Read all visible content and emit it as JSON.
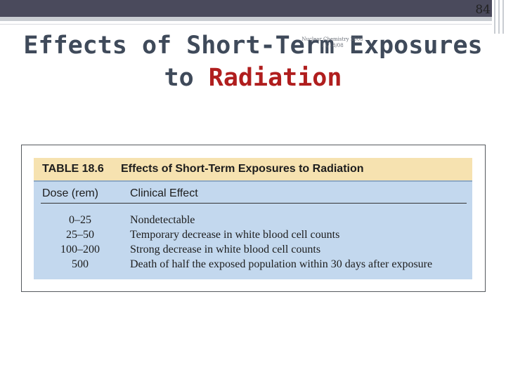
{
  "slide": {
    "page_number": "84",
    "title_line1": "Effects of Short-Term Exposures",
    "title_line2_prefix": "to",
    "title_line2_accent": "Radiation",
    "watermark_line1": "Nuclear Chemistry 2008",
    "watermark_line2": "11/18/08"
  },
  "table": {
    "number": "TABLE 18.6",
    "caption": "Effects of Short-Term Exposures to Radiation",
    "headers": {
      "dose": "Dose (rem)",
      "effect": "Clinical Effect"
    },
    "rows": [
      {
        "dose": "0–25",
        "effect": "Nondetectable"
      },
      {
        "dose": "25–50",
        "effect": "Temporary decrease in white blood cell counts"
      },
      {
        "dose": "100–200",
        "effect": "Strong decrease in white blood cell counts"
      },
      {
        "dose": "500",
        "effect": "Death of half the exposed population within 30 days after exposure"
      }
    ]
  },
  "colors": {
    "title": "#3f4a5a",
    "accent": "#b01e1e",
    "table_title_bg": "#f6e2b0",
    "table_body_bg": "#c3d8ee"
  }
}
